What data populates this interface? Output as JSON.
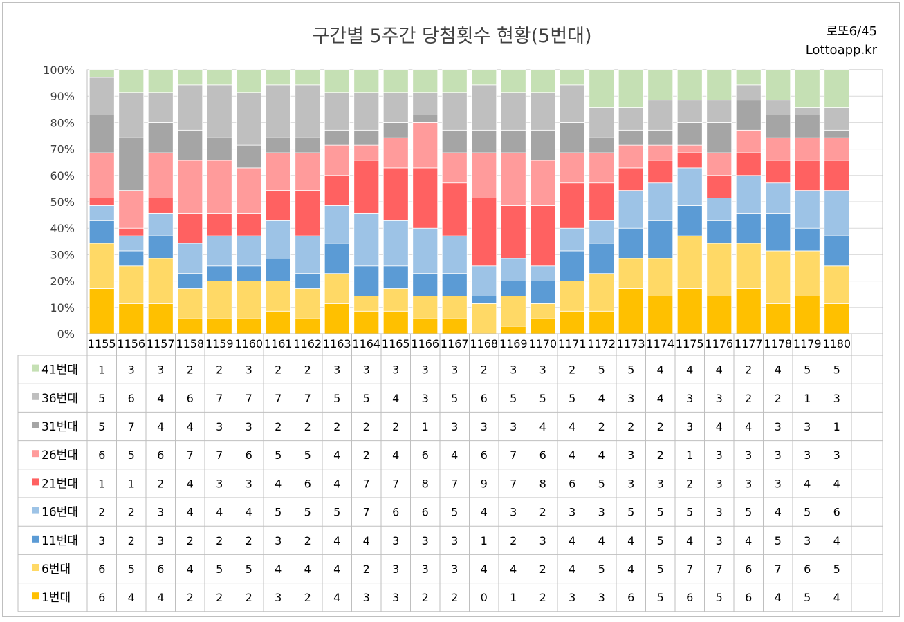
{
  "header": {
    "title": "구간별 5주간 당첨횟수 현황(5번대)",
    "brand_line1": "로또6/45",
    "brand_line2": "Lottoapp.kr"
  },
  "chart_data": {
    "type": "bar",
    "stacked": "percent",
    "title": "구간별 5주간 당첨횟수 현황(5번대)",
    "y_ticks": [
      "0%",
      "10%",
      "20%",
      "30%",
      "40%",
      "50%",
      "60%",
      "70%",
      "80%",
      "90%",
      "100%"
    ],
    "ylim": [
      0,
      100
    ],
    "grid": true,
    "legend": "data-table-left",
    "categories": [
      "1155",
      "1156",
      "1157",
      "1158",
      "1159",
      "1160",
      "1161",
      "1162",
      "1163",
      "1164",
      "1165",
      "1166",
      "1167",
      "1168",
      "1169",
      "1170",
      "1171",
      "1172",
      "1173",
      "1174",
      "1175",
      "1176",
      "1177",
      "1178",
      "1179",
      "1180"
    ],
    "series": [
      {
        "name": "1번대",
        "color": "#FFC000",
        "values": [
          6,
          4,
          4,
          2,
          2,
          2,
          3,
          2,
          4,
          3,
          3,
          2,
          2,
          0,
          1,
          2,
          3,
          3,
          6,
          5,
          6,
          5,
          6,
          4,
          5,
          4
        ]
      },
      {
        "name": "6번대",
        "color": "#FFD966",
        "values": [
          6,
          5,
          6,
          4,
          5,
          5,
          4,
          4,
          4,
          2,
          3,
          3,
          3,
          4,
          4,
          2,
          4,
          5,
          4,
          5,
          7,
          7,
          6,
          7,
          6,
          5
        ]
      },
      {
        "name": "11번대",
        "color": "#5B9BD5",
        "values": [
          3,
          2,
          3,
          2,
          2,
          2,
          3,
          2,
          4,
          4,
          3,
          3,
          3,
          1,
          2,
          3,
          4,
          4,
          4,
          5,
          4,
          3,
          4,
          5,
          3,
          4
        ]
      },
      {
        "name": "16번대",
        "color": "#9DC3E6",
        "values": [
          2,
          2,
          3,
          4,
          4,
          4,
          5,
          5,
          5,
          7,
          6,
          6,
          5,
          4,
          3,
          2,
          3,
          3,
          5,
          5,
          5,
          3,
          5,
          4,
          5,
          6
        ]
      },
      {
        "name": "21번대",
        "color": "#FF6161",
        "values": [
          1,
          1,
          2,
          4,
          3,
          3,
          4,
          6,
          4,
          7,
          7,
          8,
          7,
          9,
          7,
          8,
          6,
          5,
          3,
          3,
          2,
          3,
          3,
          3,
          4,
          4
        ]
      },
      {
        "name": "26번대",
        "color": "#FF9B9B",
        "values": [
          6,
          5,
          6,
          7,
          7,
          6,
          5,
          5,
          4,
          2,
          4,
          6,
          4,
          6,
          7,
          6,
          4,
          4,
          3,
          2,
          1,
          3,
          3,
          3,
          3,
          3
        ]
      },
      {
        "name": "31번대",
        "color": "#A5A5A5",
        "values": [
          5,
          7,
          4,
          4,
          3,
          3,
          2,
          2,
          2,
          2,
          2,
          1,
          3,
          3,
          3,
          4,
          4,
          2,
          2,
          2,
          3,
          4,
          4,
          3,
          3,
          1
        ]
      },
      {
        "name": "36번대",
        "color": "#BFBFBF",
        "values": [
          5,
          6,
          4,
          6,
          7,
          7,
          7,
          7,
          5,
          5,
          4,
          3,
          5,
          6,
          5,
          5,
          5,
          4,
          3,
          4,
          3,
          3,
          2,
          2,
          1,
          3
        ]
      },
      {
        "name": "41번대",
        "color": "#C5E0B4",
        "values": [
          1,
          3,
          3,
          2,
          2,
          3,
          2,
          2,
          3,
          3,
          3,
          3,
          3,
          2,
          3,
          3,
          2,
          5,
          5,
          4,
          4,
          4,
          2,
          4,
          5,
          5
        ]
      }
    ]
  }
}
